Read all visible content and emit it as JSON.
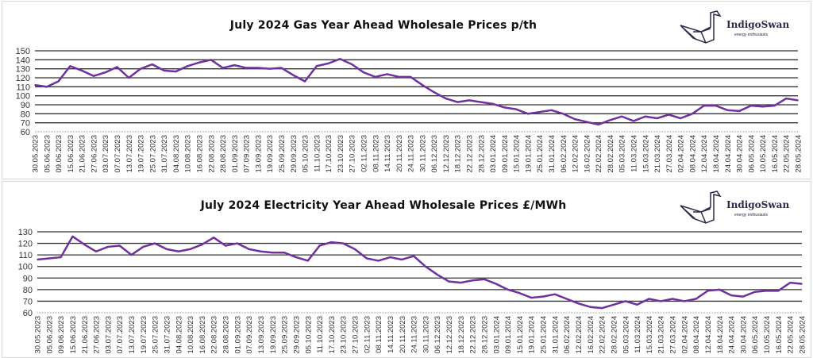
{
  "brand": {
    "name": "IndigoSwan",
    "tagline": "energy enthusiasts"
  },
  "line_color": "#7030a0",
  "chart_data": [
    {
      "type": "line",
      "title": "July 2024 Gas Year Ahead Wholesale Prices p/th",
      "xlabel": "",
      "ylabel": "",
      "ylim": [
        60,
        150
      ],
      "yticks": [
        60,
        70,
        80,
        90,
        100,
        110,
        120,
        130,
        140,
        150
      ],
      "grid": true,
      "categories": [
        "30.05.2023",
        "05.06.2023",
        "09.06.2023",
        "15.06.2023",
        "21.06.2023",
        "27.06.2023",
        "03.07.2023",
        "07.07.2023",
        "13.07.2023",
        "19.07.2023",
        "25.07.2023",
        "31.07.2023",
        "04.08.2023",
        "10.08.2023",
        "16.08.2023",
        "22.08.2023",
        "28.08.2023",
        "01.09.2023",
        "07.09.2023",
        "13.09.2023",
        "19.09.2023",
        "25.09.2023",
        "29.09.2023",
        "05.10.2023",
        "11.10.2023",
        "17.10.2023",
        "23.10.2023",
        "27.10.2023",
        "02.11.2023",
        "08.11.2023",
        "14.11.2023",
        "20.11.2023",
        "24.11.2023",
        "30.11.2023",
        "06.12.2023",
        "12.12.2023",
        "18.12.2023",
        "22.12.2023",
        "28.12.2023",
        "03.01.2024",
        "09.01.2024",
        "15.01.2024",
        "19.01.2024",
        "25.01.2024",
        "31.01.2024",
        "06.02.2024",
        "12.02.2024",
        "16.02.2024",
        "22.02.2024",
        "28.02.2024",
        "05.03.2024",
        "11.03.2024",
        "15.03.2024",
        "21.03.2024",
        "27.03.2024",
        "02.04.2024",
        "08.04.2024",
        "12.04.2024",
        "18.04.2024",
        "24.04.2024",
        "30.04.2024",
        "06.05.2024",
        "10.05.2024",
        "16.05.2024",
        "22.05.2024",
        "28.05.2024"
      ],
      "series": [
        {
          "name": "Gas Year Ahead",
          "values": [
            112,
            110,
            116,
            133,
            128,
            122,
            126,
            132,
            120,
            130,
            135,
            128,
            127,
            133,
            137,
            140,
            131,
            134,
            131,
            131,
            130,
            131,
            123,
            116,
            133,
            136,
            141,
            135,
            126,
            121,
            124,
            121,
            121,
            112,
            104,
            97,
            93,
            95,
            93,
            91,
            87,
            85,
            80,
            82,
            84,
            80,
            74,
            71,
            68,
            73,
            77,
            72,
            77,
            75,
            79,
            75,
            80,
            89,
            89,
            84,
            83,
            89,
            88,
            89,
            97,
            95
          ]
        }
      ]
    },
    {
      "type": "line",
      "title": "July 2024 Electricity Year Ahead Wholesale Prices £/MWh",
      "xlabel": "",
      "ylabel": "",
      "ylim": [
        60,
        130
      ],
      "yticks": [
        60,
        70,
        80,
        90,
        100,
        110,
        120,
        130
      ],
      "grid": true,
      "categories": [
        "30.05.2023",
        "05.06.2023",
        "09.06.2023",
        "15.06.2023",
        "21.06.2023",
        "27.06.2023",
        "03.07.2023",
        "07.07.2023",
        "13.07.2023",
        "19.07.2023",
        "25.07.2023",
        "31.07.2023",
        "04.08.2023",
        "10.08.2023",
        "16.08.2023",
        "22.08.2023",
        "28.08.2023",
        "01.09.2023",
        "07.09.2023",
        "13.09.2023",
        "19.09.2023",
        "25.09.2023",
        "29.09.2023",
        "05.10.2023",
        "11.10.2023",
        "17.10.2023",
        "23.10.2023",
        "27.10.2023",
        "02.11.2023",
        "08.11.2023",
        "14.11.2023",
        "20.11.2023",
        "24.11.2023",
        "30.11.2023",
        "06.12.2023",
        "12.12.2023",
        "18.12.2023",
        "22.12.2023",
        "28.12.2023",
        "03.01.2024",
        "09.01.2024",
        "15.01.2024",
        "19.01.2024",
        "25.01.2024",
        "31.01.2024",
        "06.02.2024",
        "12.02.2024",
        "16.02.2024",
        "22.02.2024",
        "28.02.2024",
        "05.03.2024",
        "11.03.2024",
        "15.03.2024",
        "21.03.2024",
        "27.03.2024",
        "02.04.2024",
        "08.04.2024",
        "12.04.2024",
        "18.04.2024",
        "24.04.2024",
        "30.04.2024",
        "06.05.2024",
        "10.05.2024",
        "16.05.2024",
        "22.05.2024",
        "28.05.2024"
      ],
      "series": [
        {
          "name": "Electricity Year Ahead",
          "values": [
            106,
            107,
            108,
            126,
            119,
            113,
            117,
            118,
            110,
            117,
            120,
            115,
            113,
            115,
            119,
            125,
            118,
            120,
            115,
            113,
            112,
            112,
            108,
            105,
            118,
            121,
            120,
            115,
            107,
            105,
            108,
            106,
            109,
            100,
            93,
            87,
            86,
            88,
            89,
            85,
            80,
            77,
            73,
            74,
            76,
            72,
            68,
            65,
            64,
            67,
            70,
            67,
            72,
            70,
            72,
            70,
            72,
            79,
            80,
            75,
            74,
            78,
            79,
            79,
            86,
            85
          ]
        }
      ]
    }
  ]
}
